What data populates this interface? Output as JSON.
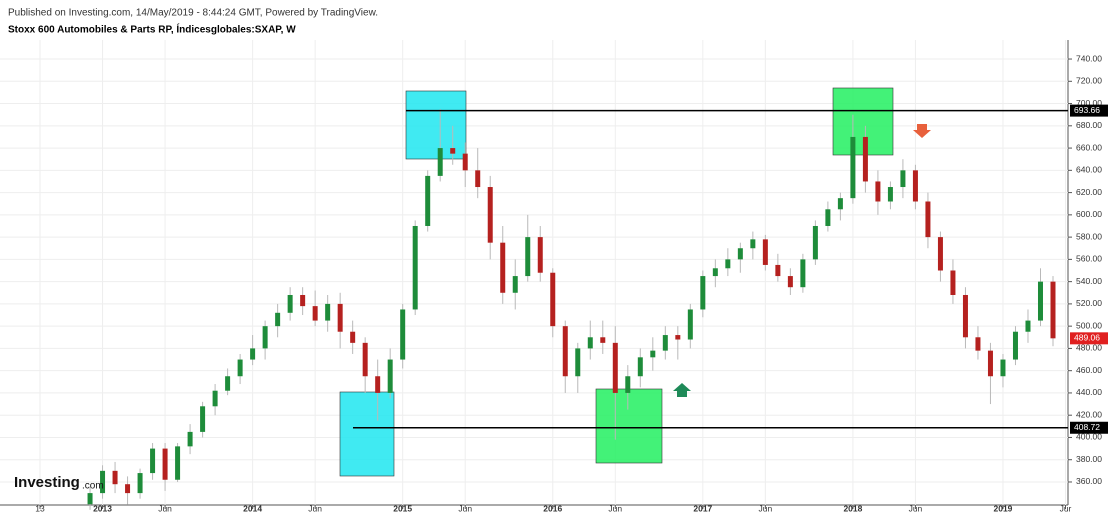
{
  "header": {
    "published": "Published on Investing.com, 14/May/2019 - 8:44:24 GMT, Powered by TradingView.",
    "symbol": "Stoxx 600 Automobiles & Parts RP, Índicesglobales:SXAP, W"
  },
  "logo": {
    "name": "Investing",
    "suffix": ".com"
  },
  "chart_data": {
    "type": "candlestick",
    "up_color": "#1e8c3a",
    "down_color": "#b5211f",
    "grid": true,
    "x": [
      -1,
      0,
      1,
      2,
      3,
      4,
      5,
      6,
      7,
      8,
      9,
      10,
      11,
      12,
      13,
      14,
      15,
      16,
      17,
      18,
      19,
      20,
      21,
      22,
      23,
      24,
      25,
      26,
      27,
      28,
      29,
      30,
      31,
      32,
      33,
      34,
      35,
      36,
      37,
      38,
      39,
      40,
      41,
      42,
      43,
      44,
      45,
      46,
      47,
      48,
      49,
      50,
      51,
      52,
      53,
      54,
      55,
      56,
      57,
      58,
      59,
      60,
      61,
      62,
      63,
      64,
      65,
      66,
      67,
      68,
      69,
      70,
      71,
      72,
      73,
      74,
      75,
      76
    ],
    "open": [
      340,
      350,
      370,
      358,
      350,
      368,
      390,
      362,
      392,
      405,
      428,
      442,
      455,
      470,
      480,
      500,
      512,
      528,
      518,
      505,
      520,
      495,
      485,
      455,
      440,
      470,
      515,
      590,
      635,
      660,
      655,
      640,
      625,
      575,
      530,
      545,
      580,
      548,
      500,
      455,
      480,
      490,
      485,
      440,
      455,
      472,
      478,
      492,
      488,
      515,
      545,
      552,
      560,
      570,
      578,
      555,
      545,
      535,
      560,
      590,
      605,
      615,
      670,
      630,
      612,
      625,
      640,
      612,
      580,
      550,
      528,
      490,
      478,
      455,
      470,
      495,
      505,
      540
    ],
    "high": [
      355,
      375,
      378,
      365,
      372,
      395,
      395,
      395,
      412,
      432,
      448,
      462,
      475,
      492,
      505,
      520,
      535,
      535,
      532,
      528,
      530,
      505,
      490,
      470,
      480,
      520,
      595,
      640,
      695,
      680,
      665,
      660,
      635,
      590,
      560,
      600,
      590,
      552,
      505,
      485,
      505,
      505,
      500,
      465,
      480,
      490,
      500,
      500,
      520,
      550,
      560,
      570,
      575,
      585,
      582,
      565,
      552,
      565,
      595,
      612,
      620,
      690,
      680,
      640,
      630,
      650,
      645,
      620,
      585,
      560,
      535,
      500,
      485,
      475,
      500,
      515,
      552,
      545
    ],
    "low": [
      335,
      345,
      350,
      340,
      345,
      362,
      352,
      360,
      385,
      400,
      420,
      438,
      448,
      465,
      470,
      490,
      505,
      510,
      500,
      495,
      480,
      475,
      440,
      415,
      435,
      462,
      510,
      585,
      630,
      645,
      625,
      615,
      560,
      520,
      515,
      540,
      540,
      490,
      440,
      440,
      470,
      475,
      398,
      425,
      445,
      460,
      470,
      470,
      480,
      508,
      535,
      545,
      548,
      560,
      550,
      540,
      528,
      530,
      555,
      585,
      595,
      610,
      620,
      600,
      605,
      615,
      605,
      570,
      540,
      520,
      480,
      470,
      430,
      445,
      465,
      485,
      500,
      482
    ],
    "close": [
      350,
      370,
      358,
      350,
      368,
      390,
      362,
      392,
      405,
      428,
      442,
      455,
      470,
      480,
      500,
      512,
      528,
      518,
      505,
      520,
      495,
      485,
      455,
      440,
      470,
      515,
      590,
      635,
      660,
      655,
      640,
      625,
      575,
      530,
      545,
      580,
      548,
      500,
      455,
      480,
      490,
      485,
      440,
      455,
      472,
      478,
      492,
      488,
      515,
      545,
      552,
      560,
      570,
      578,
      555,
      545,
      535,
      560,
      590,
      605,
      615,
      670,
      630,
      612,
      625,
      640,
      612,
      580,
      550,
      528,
      490,
      478,
      455,
      470,
      495,
      505,
      540,
      489.06
    ],
    "xlim": [
      -8.2,
      77.2
    ],
    "xticks": [
      {
        "value": -5,
        "label": "13"
      },
      {
        "value": 0,
        "label": "2013"
      },
      {
        "value": 5,
        "label": "Jun"
      },
      {
        "value": 12,
        "label": "2014"
      },
      {
        "value": 17,
        "label": "Jun"
      },
      {
        "value": 24,
        "label": "2015"
      },
      {
        "value": 29,
        "label": "Jun"
      },
      {
        "value": 36,
        "label": "2016"
      },
      {
        "value": 41,
        "label": "Jun"
      },
      {
        "value": 48,
        "label": "2017"
      },
      {
        "value": 53,
        "label": "Jun"
      },
      {
        "value": 60,
        "label": "2018"
      },
      {
        "value": 65,
        "label": "Jun"
      },
      {
        "value": 72,
        "label": "2019"
      },
      {
        "value": 77,
        "label": "Jur"
      }
    ],
    "ylim": [
      348.3,
      757.1
    ],
    "yticks": [
      {
        "value": 360,
        "label": "360.00"
      },
      {
        "value": 380,
        "label": "380.00"
      },
      {
        "value": 400,
        "label": "400.00"
      },
      {
        "value": 420,
        "label": "420.00"
      },
      {
        "value": 440,
        "label": "440.00"
      },
      {
        "value": 460,
        "label": "460.00"
      },
      {
        "value": 480,
        "label": "480.00"
      },
      {
        "value": 500,
        "label": "500.00"
      },
      {
        "value": 520,
        "label": "520.00"
      },
      {
        "value": 540,
        "label": "540.00"
      },
      {
        "value": 560,
        "label": "560.00"
      },
      {
        "value": 580,
        "label": "580.00"
      },
      {
        "value": 600,
        "label": "600.00"
      },
      {
        "value": 620,
        "label": "620.00"
      },
      {
        "value": 640,
        "label": "640.00"
      },
      {
        "value": 660,
        "label": "660.00"
      },
      {
        "value": 680,
        "label": "680.00"
      },
      {
        "value": 700,
        "label": "700.00"
      },
      {
        "value": 720,
        "label": "720.00"
      },
      {
        "value": 740,
        "label": "740.00"
      }
    ],
    "levels": [
      693.66,
      408.72
    ],
    "last_price": 489.06
  }
}
